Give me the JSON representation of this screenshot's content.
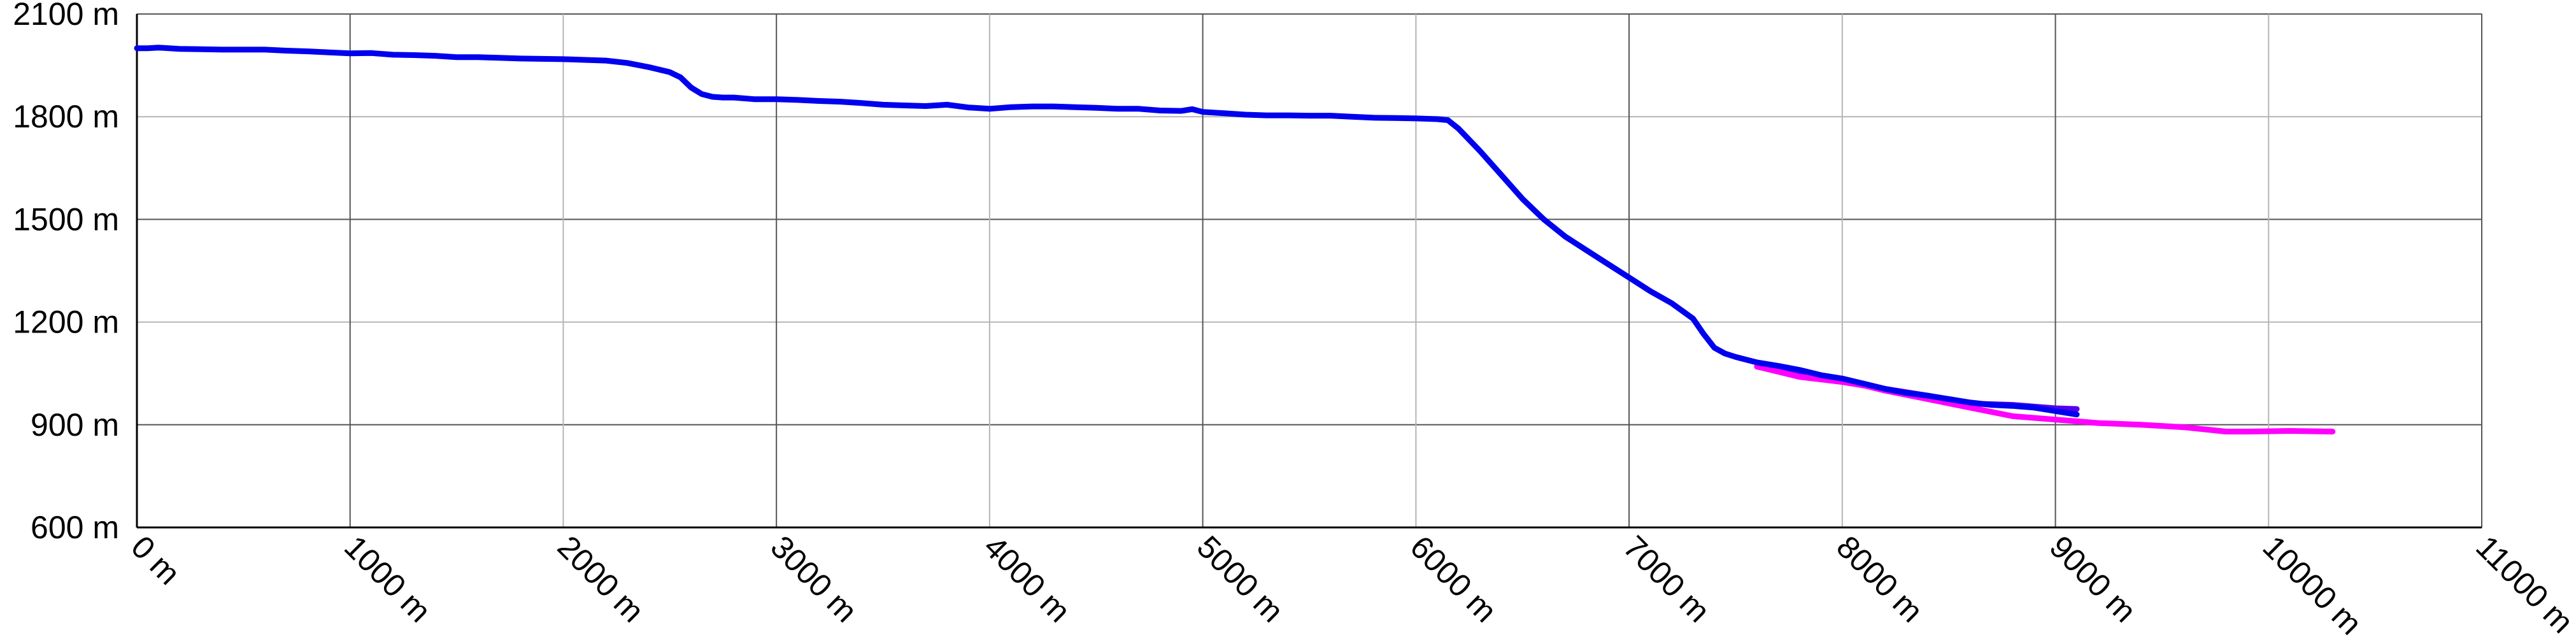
{
  "chart_data": {
    "type": "line",
    "title": "",
    "xlabel": "",
    "ylabel": "",
    "xlim": [
      0,
      11000
    ],
    "ylim": [
      600,
      2100
    ],
    "x_ticks": [
      0,
      1000,
      2000,
      3000,
      4000,
      5000,
      6000,
      7000,
      8000,
      9000,
      10000,
      11000
    ],
    "y_ticks": [
      600,
      900,
      1200,
      1500,
      1800,
      2100
    ],
    "x_tick_labels": [
      "0 m",
      "1000 m",
      "2000 m",
      "3000 m",
      "4000 m",
      "5000 m",
      "6000 m",
      "7000 m",
      "8000 m",
      "9000 m",
      "10000 m",
      "11000 m"
    ],
    "y_tick_labels": [
      "600 m",
      "900 m",
      "1200 m",
      "1500 m",
      "1800 m",
      "2100 m"
    ],
    "grid": true,
    "legend": "none",
    "series": [
      {
        "color": "#5500ee",
        "x": [
          7600,
          7800,
          8000,
          8200,
          8400,
          8600,
          8800,
          9000,
          9100
        ],
        "y": [
          1070,
          1050,
          1025,
          1005,
          985,
          962,
          958,
          948,
          946
        ]
      },
      {
        "color": "#ff00ff",
        "x": [
          7600,
          7800,
          8000,
          8100,
          8200,
          8400,
          8600,
          8800,
          9000,
          9100,
          9200,
          9400,
          9600,
          9800,
          9900,
          10100,
          10300
        ],
        "y": [
          1070,
          1040,
          1025,
          1015,
          1000,
          975,
          950,
          925,
          915,
          910,
          905,
          900,
          893,
          880,
          880,
          882,
          880
        ]
      },
      {
        "color": "#0000ee",
        "x": [
          0,
          50,
          100,
          200,
          300,
          400,
          500,
          600,
          700,
          800,
          900,
          1000,
          1100,
          1200,
          1300,
          1400,
          1500,
          1600,
          1700,
          1800,
          1900,
          2000,
          2100,
          2200,
          2300,
          2400,
          2500,
          2550,
          2600,
          2650,
          2700,
          2750,
          2800,
          2900,
          3000,
          3100,
          3200,
          3300,
          3400,
          3500,
          3600,
          3700,
          3800,
          3900,
          4000,
          4100,
          4200,
          4300,
          4400,
          4500,
          4600,
          4700,
          4800,
          4900,
          4950,
          5000,
          5100,
          5200,
          5300,
          5400,
          5500,
          5600,
          5700,
          5800,
          5900,
          6000,
          6100,
          6150,
          6200,
          6300,
          6400,
          6500,
          6600,
          6700,
          6800,
          6900,
          7000,
          7100,
          7200,
          7300,
          7350,
          7400,
          7450,
          7500,
          7600,
          7700,
          7800,
          7900,
          8000,
          8100,
          8200,
          8300,
          8400,
          8500,
          8600,
          8700,
          8800,
          8900,
          9000,
          9100
        ],
        "y": [
          2000,
          2000,
          2002,
          1998,
          1997,
          1996,
          1996,
          1996,
          1993,
          1991,
          1988,
          1985,
          1986,
          1981,
          1980,
          1978,
          1974,
          1974,
          1972,
          1970,
          1969,
          1968,
          1966,
          1964,
          1957,
          1945,
          1930,
          1915,
          1885,
          1866,
          1858,
          1856,
          1856,
          1851,
          1851,
          1849,
          1846,
          1844,
          1840,
          1835,
          1833,
          1831,
          1835,
          1827,
          1823,
          1828,
          1830,
          1830,
          1828,
          1826,
          1823,
          1823,
          1818,
          1817,
          1822,
          1814,
          1810,
          1806,
          1804,
          1804,
          1803,
          1803,
          1800,
          1797,
          1796,
          1795,
          1793,
          1790,
          1765,
          1700,
          1630,
          1560,
          1500,
          1450,
          1410,
          1370,
          1330,
          1290,
          1255,
          1210,
          1165,
          1125,
          1108,
          1098,
          1082,
          1072,
          1060,
          1045,
          1035,
          1020,
          1005,
          993,
          985,
          975,
          965,
          958,
          955,
          950,
          940,
          930
        ]
      }
    ]
  }
}
